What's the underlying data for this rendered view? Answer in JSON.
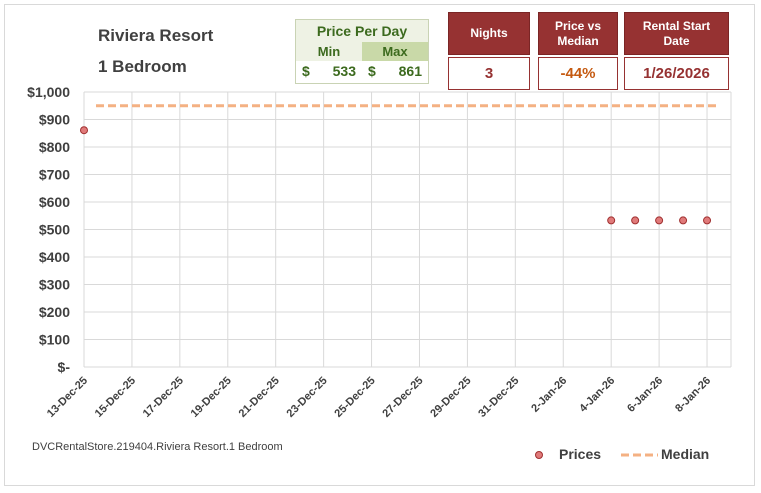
{
  "header": {
    "resort": "Riviera Resort",
    "room": "1 Bedroom"
  },
  "price_per_day": {
    "title": "Price Per Day",
    "min_label": "Min",
    "max_label": "Max",
    "currency": "$",
    "min_value": "533",
    "max_value": "861"
  },
  "kpis": {
    "nights_label": "Nights",
    "nights_value": "3",
    "price_vs_median_label": "Price vs Median",
    "price_vs_median_value": "-44%",
    "start_label": "Rental Start Date",
    "start_value": "1/26/2026"
  },
  "colors": {
    "accent": "#963232",
    "price_green": "#3c6a1e",
    "pvm_value": "#c55a11",
    "marker_fill": "#e07a7a",
    "marker_stroke": "#a03030",
    "median_line": "#f4b183",
    "grid": "#d9d9d9"
  },
  "footer": "DVCRentalStore.219404.Riviera Resort.1 Bedroom",
  "chart_data": {
    "type": "scatter",
    "x_tick_labels": [
      "13-Dec-25",
      "15-Dec-25",
      "17-Dec-25",
      "19-Dec-25",
      "21-Dec-25",
      "23-Dec-25",
      "25-Dec-25",
      "27-Dec-25",
      "29-Dec-25",
      "31-Dec-25",
      "2-Jan-26",
      "4-Jan-26",
      "6-Jan-26",
      "8-Jan-26"
    ],
    "y_tick_labels": [
      "$-",
      "$100",
      "$200",
      "$300",
      "$400",
      "$500",
      "$600",
      "$700",
      "$800",
      "$900",
      "$1,000"
    ],
    "ylim": [
      0,
      1000
    ],
    "x_range": [
      "2025-12-13",
      "2026-01-09"
    ],
    "series": [
      {
        "name": "Prices",
        "points": [
          {
            "x": "2025-12-13",
            "y": 861
          },
          {
            "x": "2026-01-04",
            "y": 533
          },
          {
            "x": "2026-01-05",
            "y": 533
          },
          {
            "x": "2026-01-06",
            "y": 533
          },
          {
            "x": "2026-01-07",
            "y": 533
          },
          {
            "x": "2026-01-08",
            "y": 533
          }
        ]
      },
      {
        "name": "Median",
        "value": 950
      }
    ],
    "legend": [
      "Prices",
      "Median"
    ],
    "legend_position": "bottom-right",
    "grid": true
  }
}
